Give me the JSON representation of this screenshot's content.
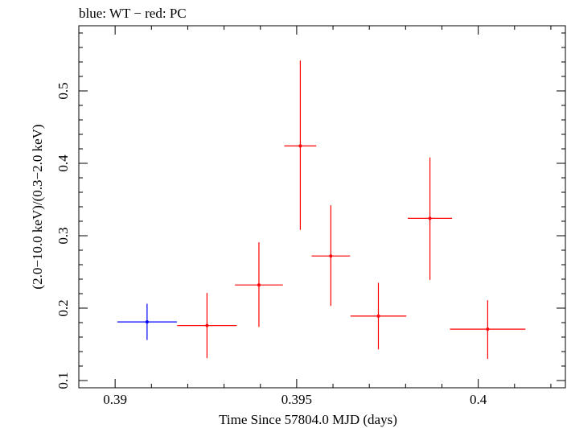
{
  "chart_data": {
    "type": "scatter",
    "title": "blue: WT − red: PC",
    "xlabel": "Time Since 57804.0 MJD (days)",
    "ylabel": "(2.0−10.0 keV)/(0.3−2.0 keV)",
    "xlim": [
      0.389,
      0.4024
    ],
    "ylim": [
      0.09,
      0.59
    ],
    "x_ticks": [
      0.39,
      0.395,
      0.4
    ],
    "x_tick_labels": [
      "0.39",
      "0.395",
      "0.4"
    ],
    "y_ticks": [
      0.1,
      0.2,
      0.3,
      0.4,
      0.5
    ],
    "y_tick_labels": [
      "0.1",
      "0.2",
      "0.3",
      "0.4",
      "0.5"
    ],
    "grid": false,
    "series": [
      {
        "color": "#0000ff",
        "points": [
          {
            "x": 0.39088,
            "xerr": 0.00082,
            "y": 0.181,
            "yerr_low": 0.025,
            "yerr_high": 0.025
          }
        ]
      },
      {
        "color": "#ff0000",
        "points": [
          {
            "x": 0.39253,
            "xerr": 0.00082,
            "y": 0.176,
            "yerr_low": 0.045,
            "yerr_high": 0.045
          },
          {
            "x": 0.39396,
            "xerr": 0.00066,
            "y": 0.232,
            "yerr_low": 0.058,
            "yerr_high": 0.059
          },
          {
            "x": 0.3951,
            "xerr": 0.00044,
            "y": 0.424,
            "yerr_low": 0.116,
            "yerr_high": 0.118
          },
          {
            "x": 0.39594,
            "xerr": 0.00053,
            "y": 0.272,
            "yerr_low": 0.069,
            "yerr_high": 0.07
          },
          {
            "x": 0.39725,
            "xerr": 0.00077,
            "y": 0.189,
            "yerr_low": 0.046,
            "yerr_high": 0.046
          },
          {
            "x": 0.39867,
            "xerr": 0.00061,
            "y": 0.324,
            "yerr_low": 0.085,
            "yerr_high": 0.084
          },
          {
            "x": 0.40026,
            "xerr": 0.00104,
            "y": 0.171,
            "yerr_low": 0.041,
            "yerr_high": 0.04
          }
        ]
      }
    ]
  }
}
